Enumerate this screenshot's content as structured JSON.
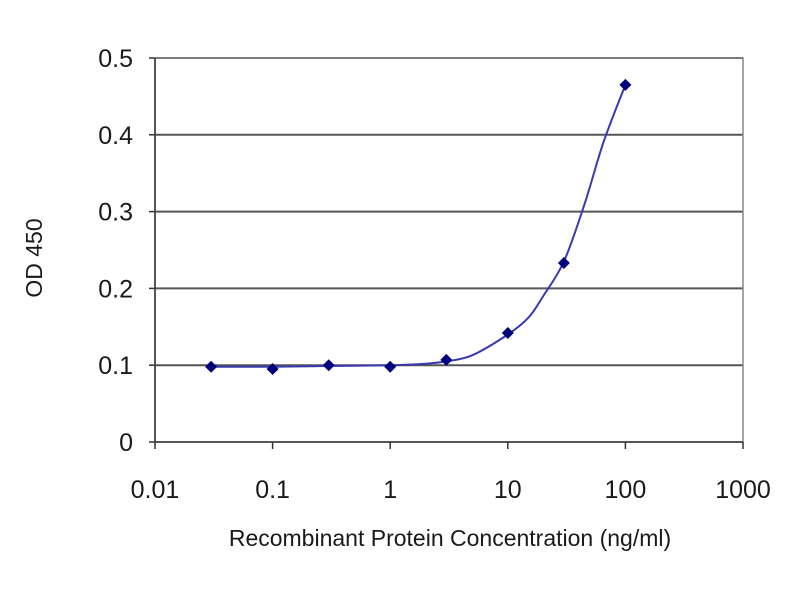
{
  "chart_data": {
    "type": "scatter",
    "title": "",
    "xlabel": "Recombinant Protein Concentration (ng/ml)",
    "ylabel": "OD 450",
    "xscale": "log",
    "xlim": [
      0.01,
      1000
    ],
    "ylim": [
      0,
      0.5
    ],
    "grid": "horizontal",
    "legend": "none",
    "x_tick_labels": [
      "0.01",
      "0.1",
      "1",
      "10",
      "100",
      "1000"
    ],
    "y_tick_labels": [
      "0",
      "0.1",
      "0.2",
      "0.3",
      "0.4",
      "0.5"
    ],
    "series": [
      {
        "points": [
          {
            "x": 0.03,
            "y": 0.098
          },
          {
            "x": 0.1,
            "y": 0.095
          },
          {
            "x": 0.3,
            "y": 0.1
          },
          {
            "x": 1,
            "y": 0.098
          },
          {
            "x": 3,
            "y": 0.107
          },
          {
            "x": 10,
            "y": 0.142
          },
          {
            "x": 30,
            "y": 0.233
          },
          {
            "x": 100,
            "y": 0.465
          }
        ],
        "fit_curve": [
          {
            "x": 0.03,
            "y": 0.098
          },
          {
            "x": 0.1,
            "y": 0.098
          },
          {
            "x": 0.3,
            "y": 0.099
          },
          {
            "x": 1,
            "y": 0.1
          },
          {
            "x": 2,
            "y": 0.102
          },
          {
            "x": 3,
            "y": 0.105
          },
          {
            "x": 5,
            "y": 0.113
          },
          {
            "x": 10,
            "y": 0.14
          },
          {
            "x": 15,
            "y": 0.162
          },
          {
            "x": 20,
            "y": 0.19
          },
          {
            "x": 30,
            "y": 0.235
          },
          {
            "x": 45,
            "y": 0.31
          },
          {
            "x": 65,
            "y": 0.39
          },
          {
            "x": 100,
            "y": 0.465
          }
        ]
      }
    ],
    "colors": {
      "plot_border": "#888888",
      "grid": "#555555",
      "axis": "#333333",
      "curve": "#3a3ab0",
      "marker": "#00007a"
    }
  }
}
